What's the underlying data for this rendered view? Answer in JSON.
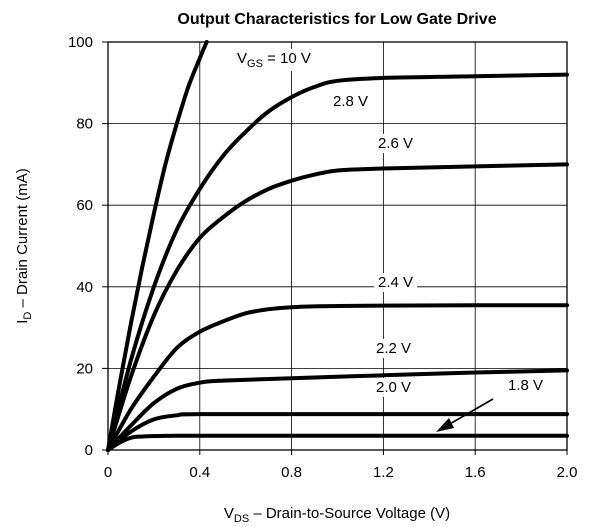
{
  "chart_data": {
    "type": "line",
    "title": "Output Characteristics for Low Gate Drive",
    "xlabel": {
      "main": "V",
      "sub": "DS",
      "rest": " –  Drain-to-Source Voltage (V)"
    },
    "ylabel": {
      "main": "I",
      "sub": "D",
      "rest": " – Drain Current (mA)"
    },
    "xlim": [
      0,
      2.0
    ],
    "ylim": [
      0,
      100
    ],
    "x_ticks": [
      "0",
      "0.4",
      "0.8",
      "1.2",
      "1.6",
      "2.0"
    ],
    "y_ticks": [
      "0",
      "20",
      "40",
      "60",
      "80",
      "100"
    ],
    "grid": true,
    "series": [
      {
        "name": "V_GS = 10 V",
        "label": {
          "main": "V",
          "sub": "GS",
          "rest": "  = 10 V"
        },
        "points": [
          [
            0,
            0
          ],
          [
            0.05,
            16
          ],
          [
            0.1,
            31
          ],
          [
            0.15,
            45
          ],
          [
            0.2,
            58
          ],
          [
            0.25,
            70
          ],
          [
            0.3,
            80
          ],
          [
            0.35,
            89
          ],
          [
            0.4,
            96
          ],
          [
            0.43,
            100
          ]
        ]
      },
      {
        "name": "2.8 V",
        "label": {
          "main": "2.8 V"
        },
        "points": [
          [
            0,
            0
          ],
          [
            0.1,
            22
          ],
          [
            0.2,
            40
          ],
          [
            0.3,
            54
          ],
          [
            0.4,
            64
          ],
          [
            0.5,
            72
          ],
          [
            0.6,
            78
          ],
          [
            0.7,
            83
          ],
          [
            0.8,
            86.5
          ],
          [
            0.9,
            89
          ],
          [
            1.0,
            90.5
          ],
          [
            1.2,
            91.2
          ],
          [
            1.6,
            91.6
          ],
          [
            2.0,
            92
          ]
        ]
      },
      {
        "name": "2.6 V",
        "label": {
          "main": "2.6 V"
        },
        "points": [
          [
            0,
            0
          ],
          [
            0.1,
            18
          ],
          [
            0.2,
            33
          ],
          [
            0.3,
            44
          ],
          [
            0.4,
            52
          ],
          [
            0.5,
            57
          ],
          [
            0.6,
            61
          ],
          [
            0.7,
            64
          ],
          [
            0.8,
            66
          ],
          [
            0.9,
            67.5
          ],
          [
            1.0,
            68.5
          ],
          [
            1.2,
            69
          ],
          [
            1.6,
            69.5
          ],
          [
            2.0,
            70
          ]
        ]
      },
      {
        "name": "2.4 V",
        "label": {
          "main": "2.4 V"
        },
        "points": [
          [
            0,
            0
          ],
          [
            0.1,
            10
          ],
          [
            0.2,
            18
          ],
          [
            0.3,
            25
          ],
          [
            0.4,
            29
          ],
          [
            0.5,
            31.5
          ],
          [
            0.6,
            33.5
          ],
          [
            0.7,
            34.5
          ],
          [
            0.8,
            35
          ],
          [
            1.0,
            35.3
          ],
          [
            1.6,
            35.5
          ],
          [
            2.0,
            35.5
          ]
        ]
      },
      {
        "name": "2.2 V",
        "label": {
          "main": "2.2 V"
        },
        "points": [
          [
            0,
            0
          ],
          [
            0.1,
            6
          ],
          [
            0.2,
            11.5
          ],
          [
            0.3,
            15
          ],
          [
            0.4,
            16.5
          ],
          [
            0.5,
            17
          ],
          [
            0.8,
            17.6
          ],
          [
            1.2,
            18.3
          ],
          [
            1.6,
            19
          ],
          [
            2.0,
            19.5
          ]
        ]
      },
      {
        "name": "2.0 V",
        "label": {
          "main": "2.0 V"
        },
        "points": [
          [
            0,
            0
          ],
          [
            0.1,
            4.5
          ],
          [
            0.2,
            7.5
          ],
          [
            0.3,
            8.5
          ],
          [
            0.4,
            8.8
          ],
          [
            1.0,
            8.8
          ],
          [
            2.0,
            8.8
          ]
        ]
      },
      {
        "name": "1.8 V",
        "label": {
          "main": "1.8 V"
        },
        "points": [
          [
            0,
            0
          ],
          [
            0.05,
            1.8
          ],
          [
            0.1,
            3
          ],
          [
            0.15,
            3.3
          ],
          [
            0.3,
            3.5
          ],
          [
            1.0,
            3.5
          ],
          [
            2.0,
            3.5
          ]
        ]
      }
    ]
  }
}
